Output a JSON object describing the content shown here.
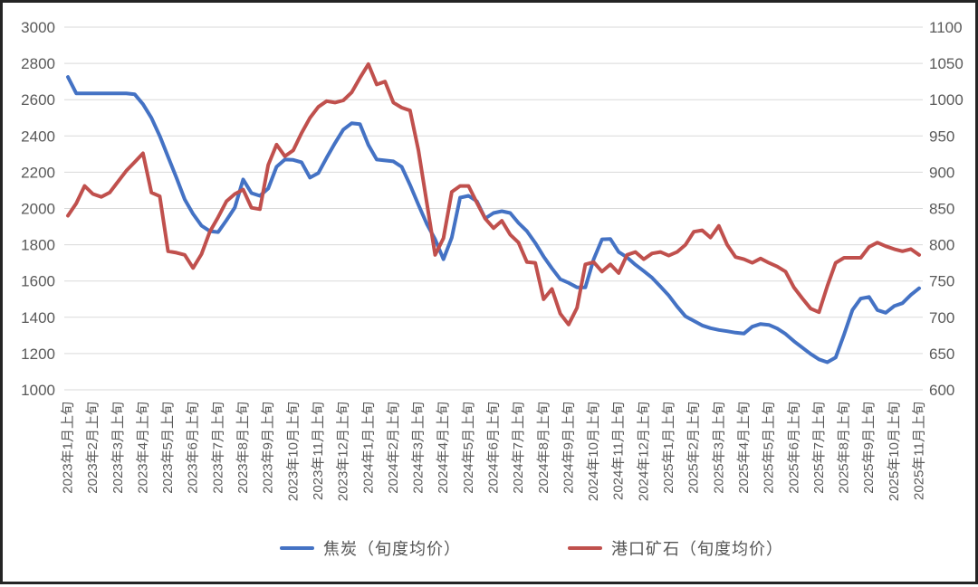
{
  "chart_data": {
    "type": "line",
    "title": "",
    "grid": "horizontal",
    "legend_position": "bottom",
    "x_labels": [
      "2023年1月上旬",
      "2023年2月上旬",
      "2023年3月上旬",
      "2023年4月上旬",
      "2023年5月上旬",
      "2023年6月上旬",
      "2023年7月上旬",
      "2023年8月上旬",
      "2023年9月上旬",
      "2023年10月上旬",
      "2023年11月上旬",
      "2023年12月上旬",
      "2024年1月上旬",
      "2024年2月上旬",
      "2024年3月上旬",
      "2024年4月上旬",
      "2024年5月上旬",
      "2024年6月上旬",
      "2024年7月上旬",
      "2024年8月上旬",
      "2024年9月上旬",
      "2024年10月上旬",
      "2024年11月上旬",
      "2024年12月上旬",
      "2025年1月上旬",
      "2025年2月上旬",
      "2025年3月上旬",
      "2025年4月上旬",
      "2025年5月上旬",
      "2025年6月上旬",
      "2025年7月上旬",
      "2025年8月上旬",
      "2025年9月上旬",
      "2025年10月上旬",
      "2025年11月上旬"
    ],
    "points_per_label": 3,
    "left_axis": {
      "min": 1000,
      "max": 3000,
      "step": 200,
      "ticks": [
        3000,
        2800,
        2600,
        2400,
        2200,
        2000,
        1800,
        1600,
        1400,
        1200,
        1000
      ]
    },
    "right_axis": {
      "min": 600,
      "max": 1100,
      "step": 50,
      "ticks": [
        1100,
        1050,
        1000,
        950,
        900,
        850,
        800,
        750,
        700,
        650,
        600
      ]
    },
    "colors": {
      "gridline": "#d9d9d9",
      "axis_text": "#595959",
      "frame": "#242424"
    },
    "series": [
      {
        "name": "焦炭（旬度均价）",
        "axis": "left",
        "color": "#4472C4",
        "values": [
          2725,
          2635,
          2635,
          2635,
          2635,
          2635,
          2635,
          2635,
          2630,
          2575,
          2500,
          2400,
          2285,
          2170,
          2050,
          1970,
          1905,
          1875,
          1870,
          1935,
          2005,
          2160,
          2085,
          2070,
          2110,
          2230,
          2270,
          2268,
          2255,
          2170,
          2195,
          2280,
          2360,
          2435,
          2470,
          2465,
          2350,
          2270,
          2265,
          2260,
          2230,
          2130,
          2020,
          1915,
          1830,
          1720,
          1840,
          2060,
          2070,
          2040,
          1945,
          1975,
          1985,
          1975,
          1920,
          1875,
          1810,
          1735,
          1670,
          1610,
          1590,
          1565,
          1565,
          1720,
          1830,
          1832,
          1760,
          1730,
          1690,
          1655,
          1618,
          1570,
          1520,
          1460,
          1405,
          1380,
          1355,
          1340,
          1330,
          1323,
          1315,
          1310,
          1348,
          1363,
          1358,
          1338,
          1308,
          1268,
          1233,
          1198,
          1168,
          1152,
          1178,
          1305,
          1440,
          1503,
          1512,
          1440,
          1425,
          1462,
          1478,
          1523,
          1560
        ]
      },
      {
        "name": "港口矿石（旬度均价）",
        "axis": "right",
        "color": "#C0504D",
        "values": [
          840,
          857,
          881,
          870,
          866,
          872,
          887,
          902,
          914,
          926,
          872,
          867,
          791,
          789,
          786,
          768,
          787,
          818,
          838,
          860,
          870,
          876,
          851,
          849,
          910,
          938,
          922,
          930,
          954,
          975,
          990,
          998,
          996,
          999,
          1010,
          1030,
          1049,
          1021,
          1025,
          996,
          989,
          985,
          930,
          858,
          786,
          809,
          873,
          881,
          881,
          858,
          836,
          823,
          833,
          814,
          803,
          776,
          775,
          725,
          739,
          705,
          690,
          713,
          773,
          776,
          763,
          773,
          761,
          786,
          790,
          780,
          788,
          790,
          785,
          790,
          800,
          818,
          820,
          810,
          826,
          800,
          783,
          780,
          775,
          781,
          775,
          770,
          763,
          741,
          726,
          712,
          707,
          743,
          775,
          782,
          782,
          782,
          797,
          803,
          798,
          794,
          791,
          794,
          786
        ]
      }
    ]
  }
}
